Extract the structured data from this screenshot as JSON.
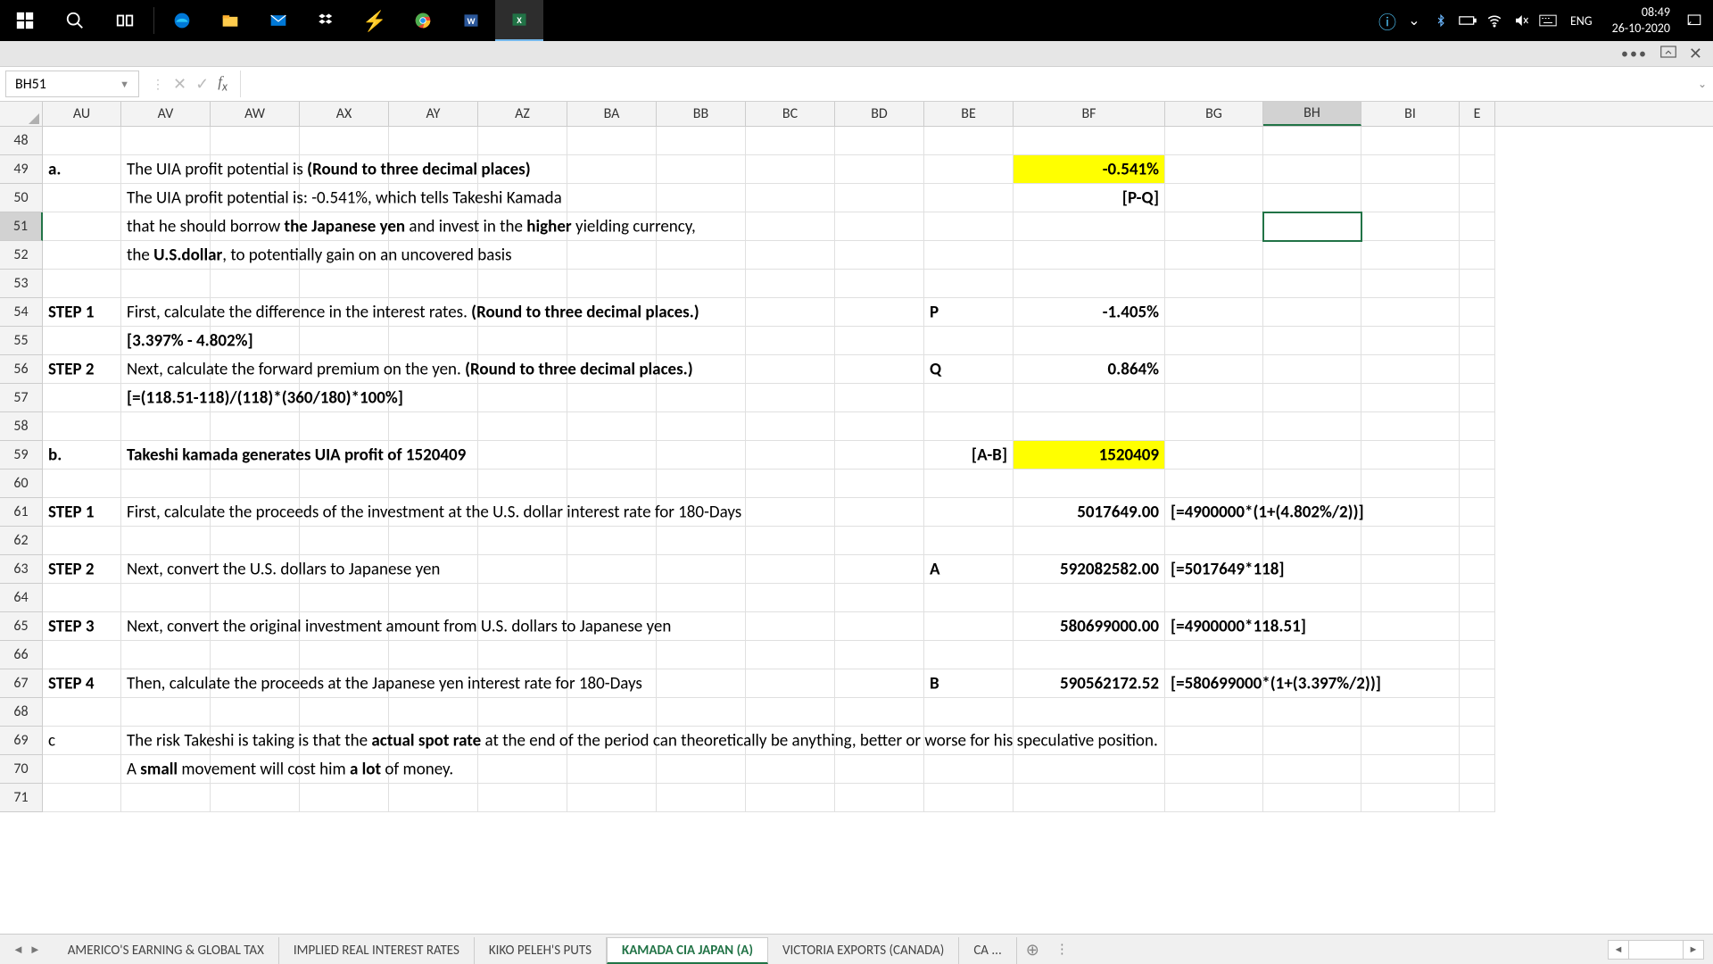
{
  "taskbar": {
    "clock_time": "08:49",
    "clock_date": "26-10-2020",
    "lang": "ENG"
  },
  "colors": {
    "highlight": "#ffff00",
    "excel_green": "#217346",
    "selection_border": "#217346"
  },
  "formula_bar": {
    "name_box": "BH51",
    "formula": ""
  },
  "columns": [
    "AU",
    "AV",
    "AW",
    "AX",
    "AY",
    "AZ",
    "BA",
    "BB",
    "BC",
    "BD",
    "BE",
    "BF",
    "BG",
    "BH",
    "BI",
    "E"
  ],
  "selected_column": "BH",
  "row_numbers": [
    48,
    49,
    50,
    51,
    52,
    53,
    54,
    55,
    56,
    57,
    58,
    59,
    60,
    61,
    62,
    63,
    64,
    65,
    66,
    67,
    68,
    69,
    70,
    71
  ],
  "selected_row": 51,
  "cells": {
    "r49": {
      "AU": "a.",
      "AV_plain1": "The UIA profit potential is ",
      "AV_bold": "(Round to three decimal places)",
      "BF": "-0.541%",
      "BF_highlight": true
    },
    "r50": {
      "AV_plain": "The UIA profit potential is:   -0.541%, which tells Takeshi Kamada",
      "BF": "[P-Q]"
    },
    "r51": {
      "AV_p1": "that he should borrow ",
      "AV_b1": "the Japanese yen",
      "AV_p2": " and invest in the ",
      "AV_b2": "higher",
      "AV_p3": " yielding currency,"
    },
    "r52": {
      "AV_p1": " the ",
      "AV_b1": "U.S.dollar",
      "AV_p2": ", to potentially gain on an uncovered basis"
    },
    "r54": {
      "AU": "STEP 1",
      "AV_p1": "First, calculate the difference in the interest rates. ",
      "AV_b1": "(Round to three decimal places.)",
      "BE": "P",
      "BF": "-1.405%"
    },
    "r55": {
      "AV": "[3.397% - 4.802%]"
    },
    "r56": {
      "AU": "STEP 2",
      "AV_p1": "Next, calculate the forward premium on the yen. ",
      "AV_b1": "(Round to three decimal places.)",
      "BE": "Q",
      "BF": "0.864%"
    },
    "r57": {
      "AV": "[=(118.51-118)/(118)*(360/180)*100%]"
    },
    "r59": {
      "AU": "b.",
      "AV": "Takeshi kamada generates UIA profit of 1520409",
      "BE": "[A-B]",
      "BF": "1520409",
      "BF_highlight": true
    },
    "r61": {
      "AU": "STEP 1",
      "AV": "First, calculate the proceeds of the investment at the U.S. dollar interest rate for 180-Days",
      "BF": "5017649.00",
      "BG": "[=4900000*(1+(4.802%/2))]"
    },
    "r63": {
      "AU": "STEP 2",
      "AV": "Next, convert the U.S. dollars to Japanese yen",
      "BE": "A",
      "BF": "592082582.00",
      "BG": "[=5017649*118]"
    },
    "r65": {
      "AU": "STEP 3",
      "AV": "Next, convert the original investment amount from U.S. dollars to Japanese yen",
      "BF": "580699000.00",
      "BG": "[=4900000*118.51]"
    },
    "r67": {
      "AU": "STEP 4",
      "AV": "Then, calculate the proceeds at the Japanese yen interest rate for 180-Days",
      "BE": "B",
      "BF": "590562172.52",
      "BG": "[=580699000*(1+(3.397%/2))]"
    },
    "r69": {
      "AU": "c",
      "AV_p1": "The risk Takeshi is taking is that the ",
      "AV_b1": "actual spot rate",
      "AV_p2": " at the end of the period can theoretically be anything, better or worse for his speculative position."
    },
    "r70": {
      "AV_p1": "A ",
      "AV_b1": "small",
      "AV_p2": " movement will cost him ",
      "AV_b2": "a lot",
      "AV_p3": " of money."
    }
  },
  "sheet_tabs": {
    "tabs": [
      "AMERICO'S EARNING & GLOBAL TAX",
      "IMPLIED REAL INTEREST RATES",
      "KIKO PELEH'S PUTS",
      "KAMADA CIA JAPAN (A)",
      "VICTORIA EXPORTS (CANADA)",
      "CA ..."
    ],
    "active_index": 3
  }
}
